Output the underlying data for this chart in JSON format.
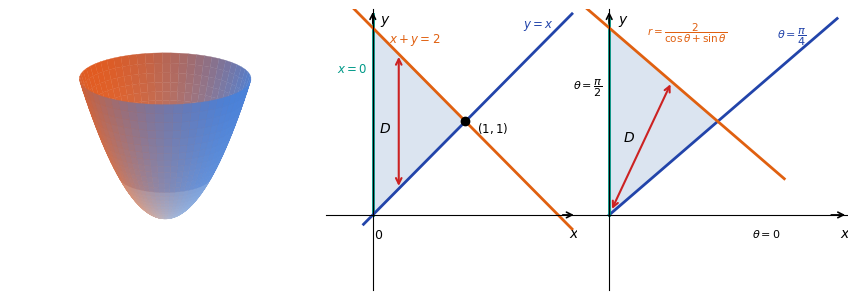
{
  "fig_width": 8.48,
  "fig_height": 3.05,
  "dpi": 100,
  "region_fill_color": "#b0c4de",
  "region_fill_alpha": 0.45,
  "line_color_blue": "#2244aa",
  "line_color_orange": "#e06010",
  "line_color_teal": "#009988",
  "arrow_color": "#cc2222",
  "text_color_blue": "#2244aa",
  "text_color_orange": "#e06010",
  "text_color_teal": "#009988",
  "dot_color": "#000000",
  "subplot2_xlim": [
    -0.5,
    2.2
  ],
  "subplot2_ylim": [
    -0.8,
    2.2
  ],
  "subplot3_xlim": [
    -0.3,
    2.2
  ],
  "subplot3_ylim": [
    -0.8,
    2.2
  ]
}
